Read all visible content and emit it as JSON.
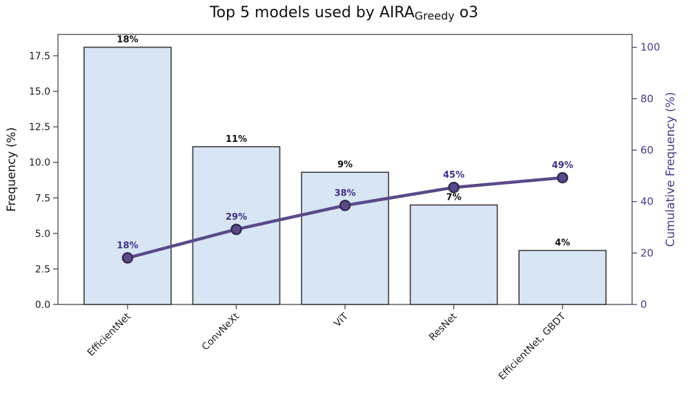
{
  "title": {
    "main": "Top 5 models used by AIRA",
    "subscript": "Greedy",
    "suffix": " o3"
  },
  "chart_data": {
    "type": "bar",
    "subtype": "pareto-combo",
    "title": "Top 5 models used by AIRA_Greedy o3",
    "categories": [
      "EfficientNet",
      "ConvNeXt",
      "ViT",
      "ResNet",
      "EfficientNet, GBDT"
    ],
    "series": [
      {
        "name": "Frequency (%)",
        "type": "bar",
        "axis": "left",
        "values": [
          18.1,
          11.1,
          9.3,
          7.0,
          3.8
        ],
        "point_labels": [
          "18%",
          "11%",
          "9%",
          "7%",
          "4%"
        ]
      },
      {
        "name": "Cumulative Frequency (%)",
        "type": "line",
        "axis": "right",
        "values": [
          18.1,
          29.2,
          38.5,
          45.5,
          49.3
        ],
        "point_labels": [
          "18%",
          "29%",
          "38%",
          "45%",
          "49%"
        ]
      }
    ],
    "xlabel": "",
    "ylabel_left": "Frequency (%)",
    "ylabel_right": "Cumulative Frequency (%)",
    "ylim_left": [
      0,
      19.0
    ],
    "ylim_right": [
      0,
      105
    ],
    "yticks_left": {
      "values": [
        0,
        2.5,
        5,
        7.5,
        10,
        12.5,
        15,
        17.5
      ],
      "labels": [
        "0.0",
        "2.5",
        "5.0",
        "7.5",
        "10.0",
        "12.5",
        "15.0",
        "17.5"
      ]
    },
    "yticks_right": {
      "values": [
        0,
        20,
        40,
        60,
        80,
        100
      ],
      "labels": [
        "0",
        "20",
        "40",
        "60",
        "80",
        "100"
      ]
    },
    "grid": false,
    "legend": "none",
    "xtick_rotation_deg": 45,
    "colors": {
      "bar_fill": "#d7e5f4",
      "bar_edge": "#3a3a3a",
      "line": "#5a4a88",
      "marker_fill": "#5a4a88",
      "marker_edge": "#342a55",
      "cumulative_label": "#3d3381",
      "right_axis_text": "#473c85",
      "bar_label": "#111111",
      "spine": "#444444",
      "tick_label": "#1c1c1c"
    }
  }
}
